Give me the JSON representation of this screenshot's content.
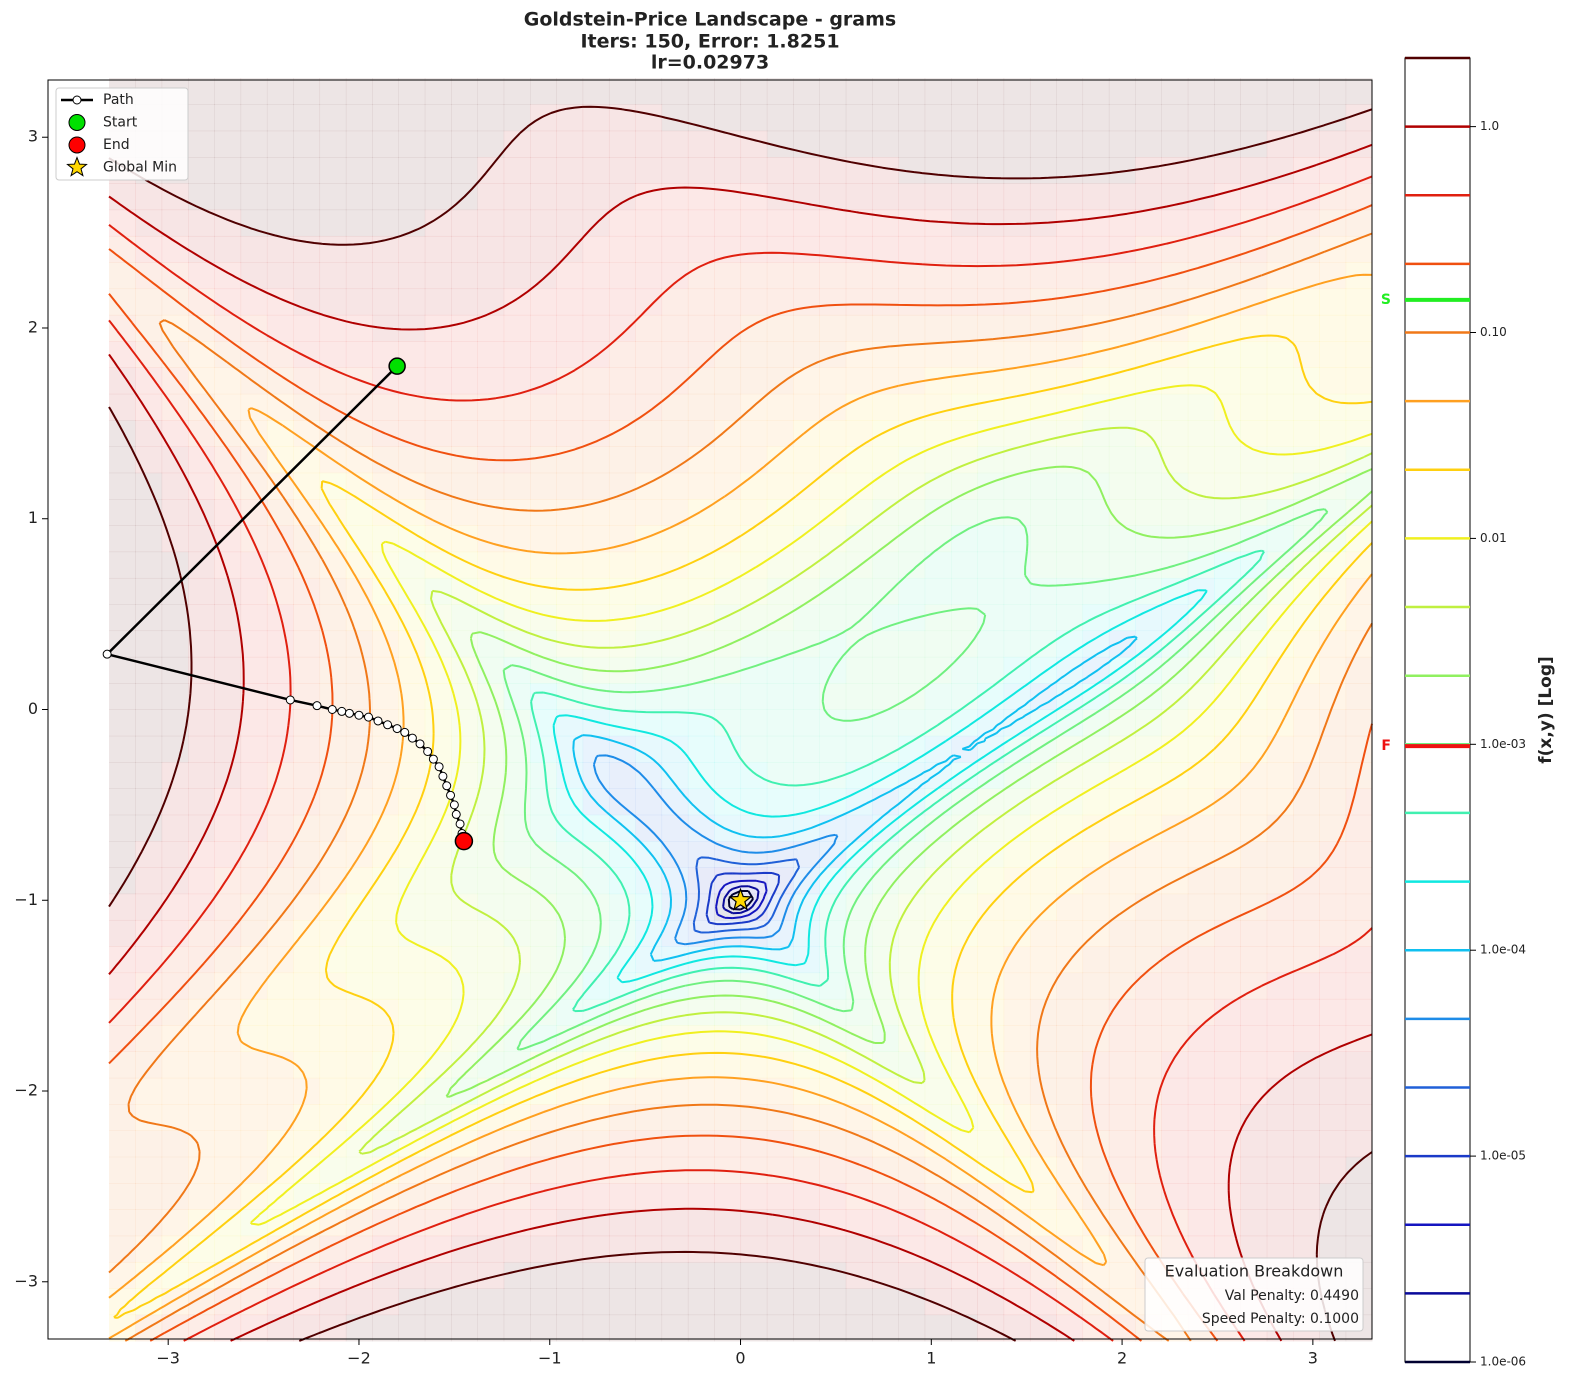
{
  "chart_data": {
    "type": "contour",
    "title": [
      "Goldstein-Price Landscape - grams",
      "Iters: 150, Error: 1.8251",
      "lr=0.02973"
    ],
    "xlim": [
      -3.63,
      3.31
    ],
    "ylim": [
      -3.3,
      3.3
    ],
    "xticks": [
      {
        "value": -3,
        "label": "−3"
      },
      {
        "value": -2,
        "label": "−2"
      },
      {
        "value": -1,
        "label": "−1"
      },
      0,
      1,
      2,
      3
    ],
    "yticks": [
      {
        "value": -3,
        "label": "−3"
      },
      {
        "value": -2,
        "label": "−2"
      },
      {
        "value": -1,
        "label": "−1"
      },
      0,
      1,
      2,
      3
    ],
    "levels": [
      1e-06,
      2.154e-06,
      4.642e-06,
      1e-05,
      2.154e-05,
      4.642e-05,
      0.0001,
      0.0002154,
      0.0004642,
      0.001,
      0.002154,
      0.004642,
      0.01,
      0.02154,
      0.04642,
      0.1,
      0.2154,
      0.4642,
      1,
      2.154
    ],
    "colors": [
      "#000030",
      "#0a0a9a",
      "#1515c0",
      "#1a3ac8",
      "#2060d8",
      "#1e8ce8",
      "#10c0f0",
      "#10e8e0",
      "#40f0b0",
      "#70f080",
      "#90f060",
      "#c0f040",
      "#f0f020",
      "#ffd010",
      "#ffa020",
      "#f07818",
      "#f05010",
      "#e02010",
      "#b00000",
      "#500000"
    ],
    "colorbar": {
      "label": "f(x,y) [Log]",
      "log": true,
      "lim": [
        1e-06,
        2.154
      ],
      "ticks": [
        {
          "value": 1e-06,
          "label": "1.0e-06"
        },
        {
          "value": 1e-05,
          "label": "1.0e-05"
        },
        {
          "value": 0.0001,
          "label": "1.0e-04"
        },
        {
          "value": 0.001,
          "label": "1.0e-03"
        },
        {
          "value": 0.01,
          "label": "0.01"
        },
        {
          "value": 0.1,
          "label": "0.10"
        },
        {
          "value": 1,
          "label": "1.0"
        }
      ],
      "markers": [
        {
          "label": "S",
          "value": 0.144,
          "color": "#22ee22"
        },
        {
          "label": "F",
          "value": 0.00098,
          "color": "#ee1111"
        }
      ]
    },
    "path": {
      "name": "Path",
      "color": "#000000",
      "x": [
        -1.8,
        -3.32,
        -2.36,
        -2.22,
        -2.14,
        -2.09,
        -2.05,
        -2.0,
        -1.95,
        -1.9,
        -1.85,
        -1.8,
        -1.76,
        -1.72,
        -1.68,
        -1.64,
        -1.61,
        -1.58,
        -1.56,
        -1.54,
        -1.52,
        -1.5,
        -1.49,
        -1.47,
        -1.46,
        -1.45
      ],
      "y": [
        1.8,
        0.29,
        0.05,
        0.02,
        0.0,
        -0.01,
        -0.02,
        -0.03,
        -0.04,
        -0.06,
        -0.08,
        -0.1,
        -0.12,
        -0.15,
        -0.18,
        -0.22,
        -0.26,
        -0.3,
        -0.35,
        -0.4,
        -0.45,
        -0.5,
        -0.55,
        -0.6,
        -0.65,
        -0.69
      ]
    },
    "start": {
      "name": "Start",
      "x": -1.8,
      "y": 1.8,
      "color": "#00e000"
    },
    "end": {
      "name": "End",
      "x": -1.45,
      "y": -0.69,
      "color": "#ff0000"
    },
    "global_min": {
      "name": "Global Min",
      "x": 0,
      "y": -1,
      "color": "#ffd700"
    },
    "legend": "upper left",
    "evaluation": {
      "title": "Evaluation Breakdown",
      "lines": [
        "Val Penalty: 0.4490",
        "Speed Penalty: 0.1000"
      ]
    }
  }
}
